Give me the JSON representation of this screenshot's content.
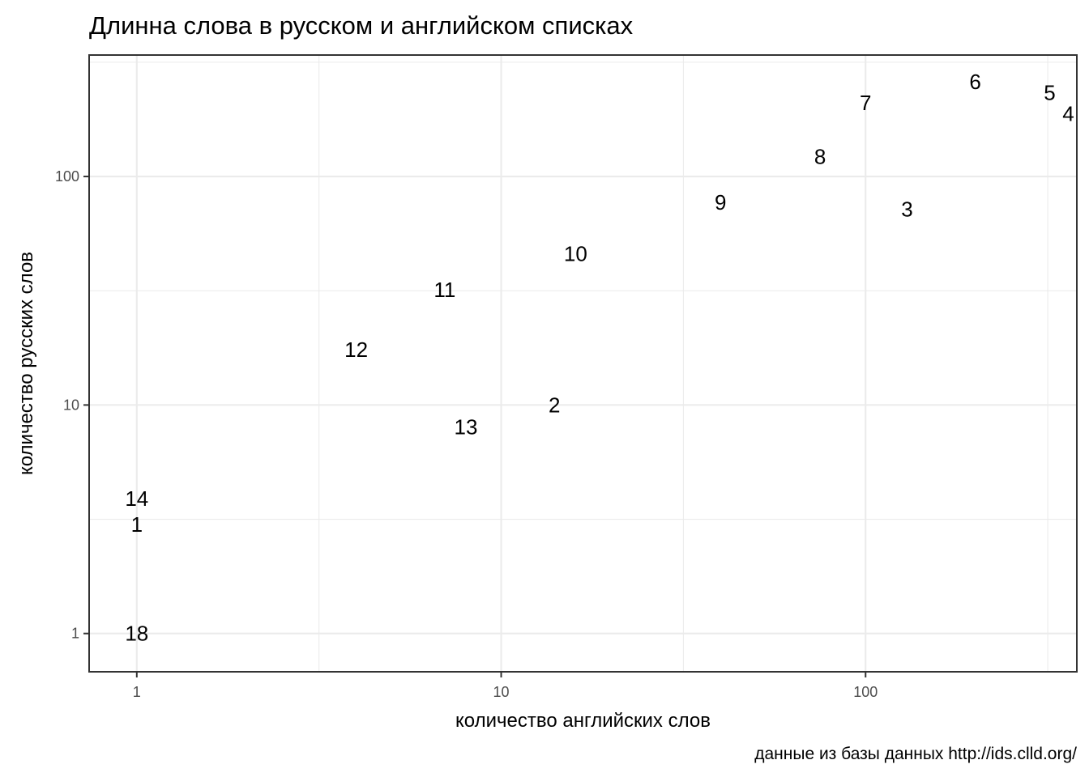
{
  "chart_data": {
    "type": "scatter",
    "marker": "text-label",
    "title": "Длинна слова в русском и английском списках",
    "xlabel": "количество английских слов",
    "ylabel": "количество русских слов",
    "caption": "данные из базы данных http://ids.clld.org/",
    "x_scale": "log10",
    "y_scale": "log10",
    "xlim": [
      0.74,
      380
    ],
    "ylim": [
      0.68,
      340
    ],
    "x_ticks": [
      {
        "value": 1,
        "label": "1"
      },
      {
        "value": 10,
        "label": "10"
      },
      {
        "value": 100,
        "label": "100"
      }
    ],
    "y_ticks": [
      {
        "value": 1,
        "label": "1"
      },
      {
        "value": 10,
        "label": "10"
      },
      {
        "value": 100,
        "label": "100"
      }
    ],
    "grid": true,
    "legend": "none",
    "points": [
      {
        "label": "18",
        "x": 1,
        "y": 1
      },
      {
        "label": "1",
        "x": 1,
        "y": 3
      },
      {
        "label": "14",
        "x": 1,
        "y": 3.9
      },
      {
        "label": "13",
        "x": 8,
        "y": 8
      },
      {
        "label": "2",
        "x": 14,
        "y": 10
      },
      {
        "label": "12",
        "x": 4,
        "y": 17.5
      },
      {
        "label": "11",
        "x": 7,
        "y": 32
      },
      {
        "label": "10",
        "x": 16,
        "y": 46
      },
      {
        "label": "9",
        "x": 40,
        "y": 77
      },
      {
        "label": "3",
        "x": 130,
        "y": 72
      },
      {
        "label": "8",
        "x": 75,
        "y": 122
      },
      {
        "label": "7",
        "x": 100,
        "y": 210
      },
      {
        "label": "6",
        "x": 200,
        "y": 260
      },
      {
        "label": "5",
        "x": 320,
        "y": 233
      },
      {
        "label": "4",
        "x": 360,
        "y": 188
      }
    ]
  }
}
